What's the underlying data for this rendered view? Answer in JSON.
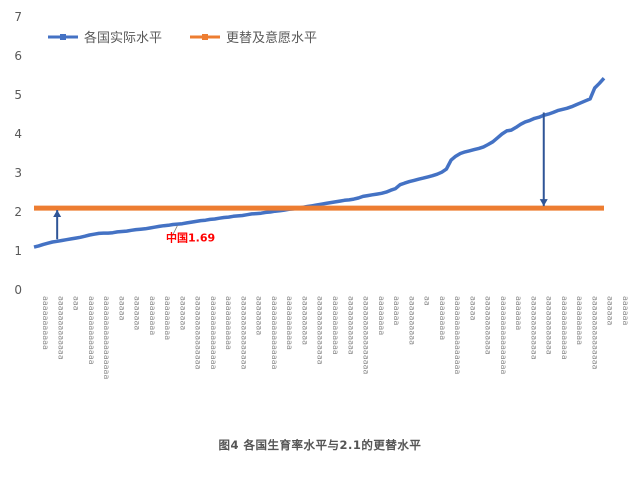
{
  "caption": "图4 各国生育率水平与2.1的更替水平",
  "chart_data": {
    "type": "line",
    "ylim": [
      0,
      7
    ],
    "yticks": [
      0,
      1,
      2,
      3,
      4,
      5,
      6,
      7
    ],
    "grid": false,
    "legend_position": "top-left",
    "series": [
      {
        "name": "各国实际水平",
        "color": "#4472C4",
        "values": [
          1.1,
          1.13,
          1.17,
          1.2,
          1.23,
          1.25,
          1.27,
          1.29,
          1.31,
          1.33,
          1.35,
          1.38,
          1.41,
          1.43,
          1.45,
          1.46,
          1.46,
          1.47,
          1.49,
          1.5,
          1.51,
          1.53,
          1.55,
          1.56,
          1.57,
          1.59,
          1.61,
          1.63,
          1.65,
          1.66,
          1.68,
          1.69,
          1.7,
          1.72,
          1.74,
          1.76,
          1.78,
          1.79,
          1.81,
          1.82,
          1.84,
          1.86,
          1.87,
          1.89,
          1.9,
          1.91,
          1.93,
          1.95,
          1.96,
          1.97,
          1.99,
          2.0,
          2.02,
          2.03,
          2.05,
          2.07,
          2.08,
          2.1,
          2.12,
          2.14,
          2.16,
          2.18,
          2.2,
          2.22,
          2.24,
          2.26,
          2.28,
          2.3,
          2.31,
          2.33,
          2.36,
          2.4,
          2.42,
          2.44,
          2.46,
          2.48,
          2.51,
          2.56,
          2.6,
          2.7,
          2.74,
          2.78,
          2.81,
          2.84,
          2.87,
          2.9,
          2.93,
          2.97,
          3.02,
          3.1,
          3.33,
          3.43,
          3.5,
          3.54,
          3.57,
          3.6,
          3.63,
          3.67,
          3.73,
          3.8,
          3.9,
          4.0,
          4.08,
          4.1,
          4.17,
          4.25,
          4.31,
          4.35,
          4.4,
          4.43,
          4.48,
          4.51,
          4.55,
          4.6,
          4.63,
          4.66,
          4.7,
          4.75,
          4.8,
          4.85,
          4.9,
          5.18,
          5.3,
          5.43
        ]
      },
      {
        "name": "更替及意愿水平",
        "color": "#ED7D31",
        "values": [
          2.1,
          2.1
        ]
      }
    ],
    "annotations": [
      {
        "text": "中国1.69",
        "color": "#FF0000",
        "point_index": 31
      }
    ],
    "arrows": [
      {
        "x_index": 5,
        "from": 1.3,
        "to": 2.05
      },
      {
        "x_index": 110,
        "from": 4.55,
        "to": 2.15
      }
    ],
    "tick_labels": [
      "aaaaaaaaaaa",
      "aaaaaaaaaaaaa",
      "aaa",
      "aaaaaaaaaaaaaa",
      "aaaaaaaaaaaaaaaaa",
      "aaaaa",
      "aaaaaaa",
      "aaaaaaaa",
      "aaaaaaaaa",
      "aaaaaaa",
      "aaaaaaaaaaaaaaa",
      "aaaaaaaaaaaaaaa",
      "aaaaaaaaaaa",
      "aaaaaaaaaaaaaaa",
      "aaaaaaaa",
      "aaaaaaaaaaaaaaa",
      "aaaaaaaaaaa",
      "aaaaaaaaaa",
      "aaaaaaaaaaaaaa",
      "aaaaaaaaaaaa",
      "aaaaaaaaaaaa",
      "aaaaaaaaaaaaaaaa",
      "aaaaaaaa",
      "aaaaaa",
      "aaaaaaaaaa",
      "aa",
      "aaaaaaaaa",
      "aaaaaaaaaaaaaaaa",
      "aaaaa",
      "aaaaaaaaaaaa",
      "aaaaaaaaaaaaaaaa",
      "aaaaaaa",
      "aaaaaaaaaaaaa",
      "aaaaaaaaaaaa",
      "aaaaaaaaaaaaa",
      "aaaaaaaaaa",
      "aaaaaaaaaaaaaaa",
      "aaaaaa",
      "aaaaaa"
    ]
  }
}
